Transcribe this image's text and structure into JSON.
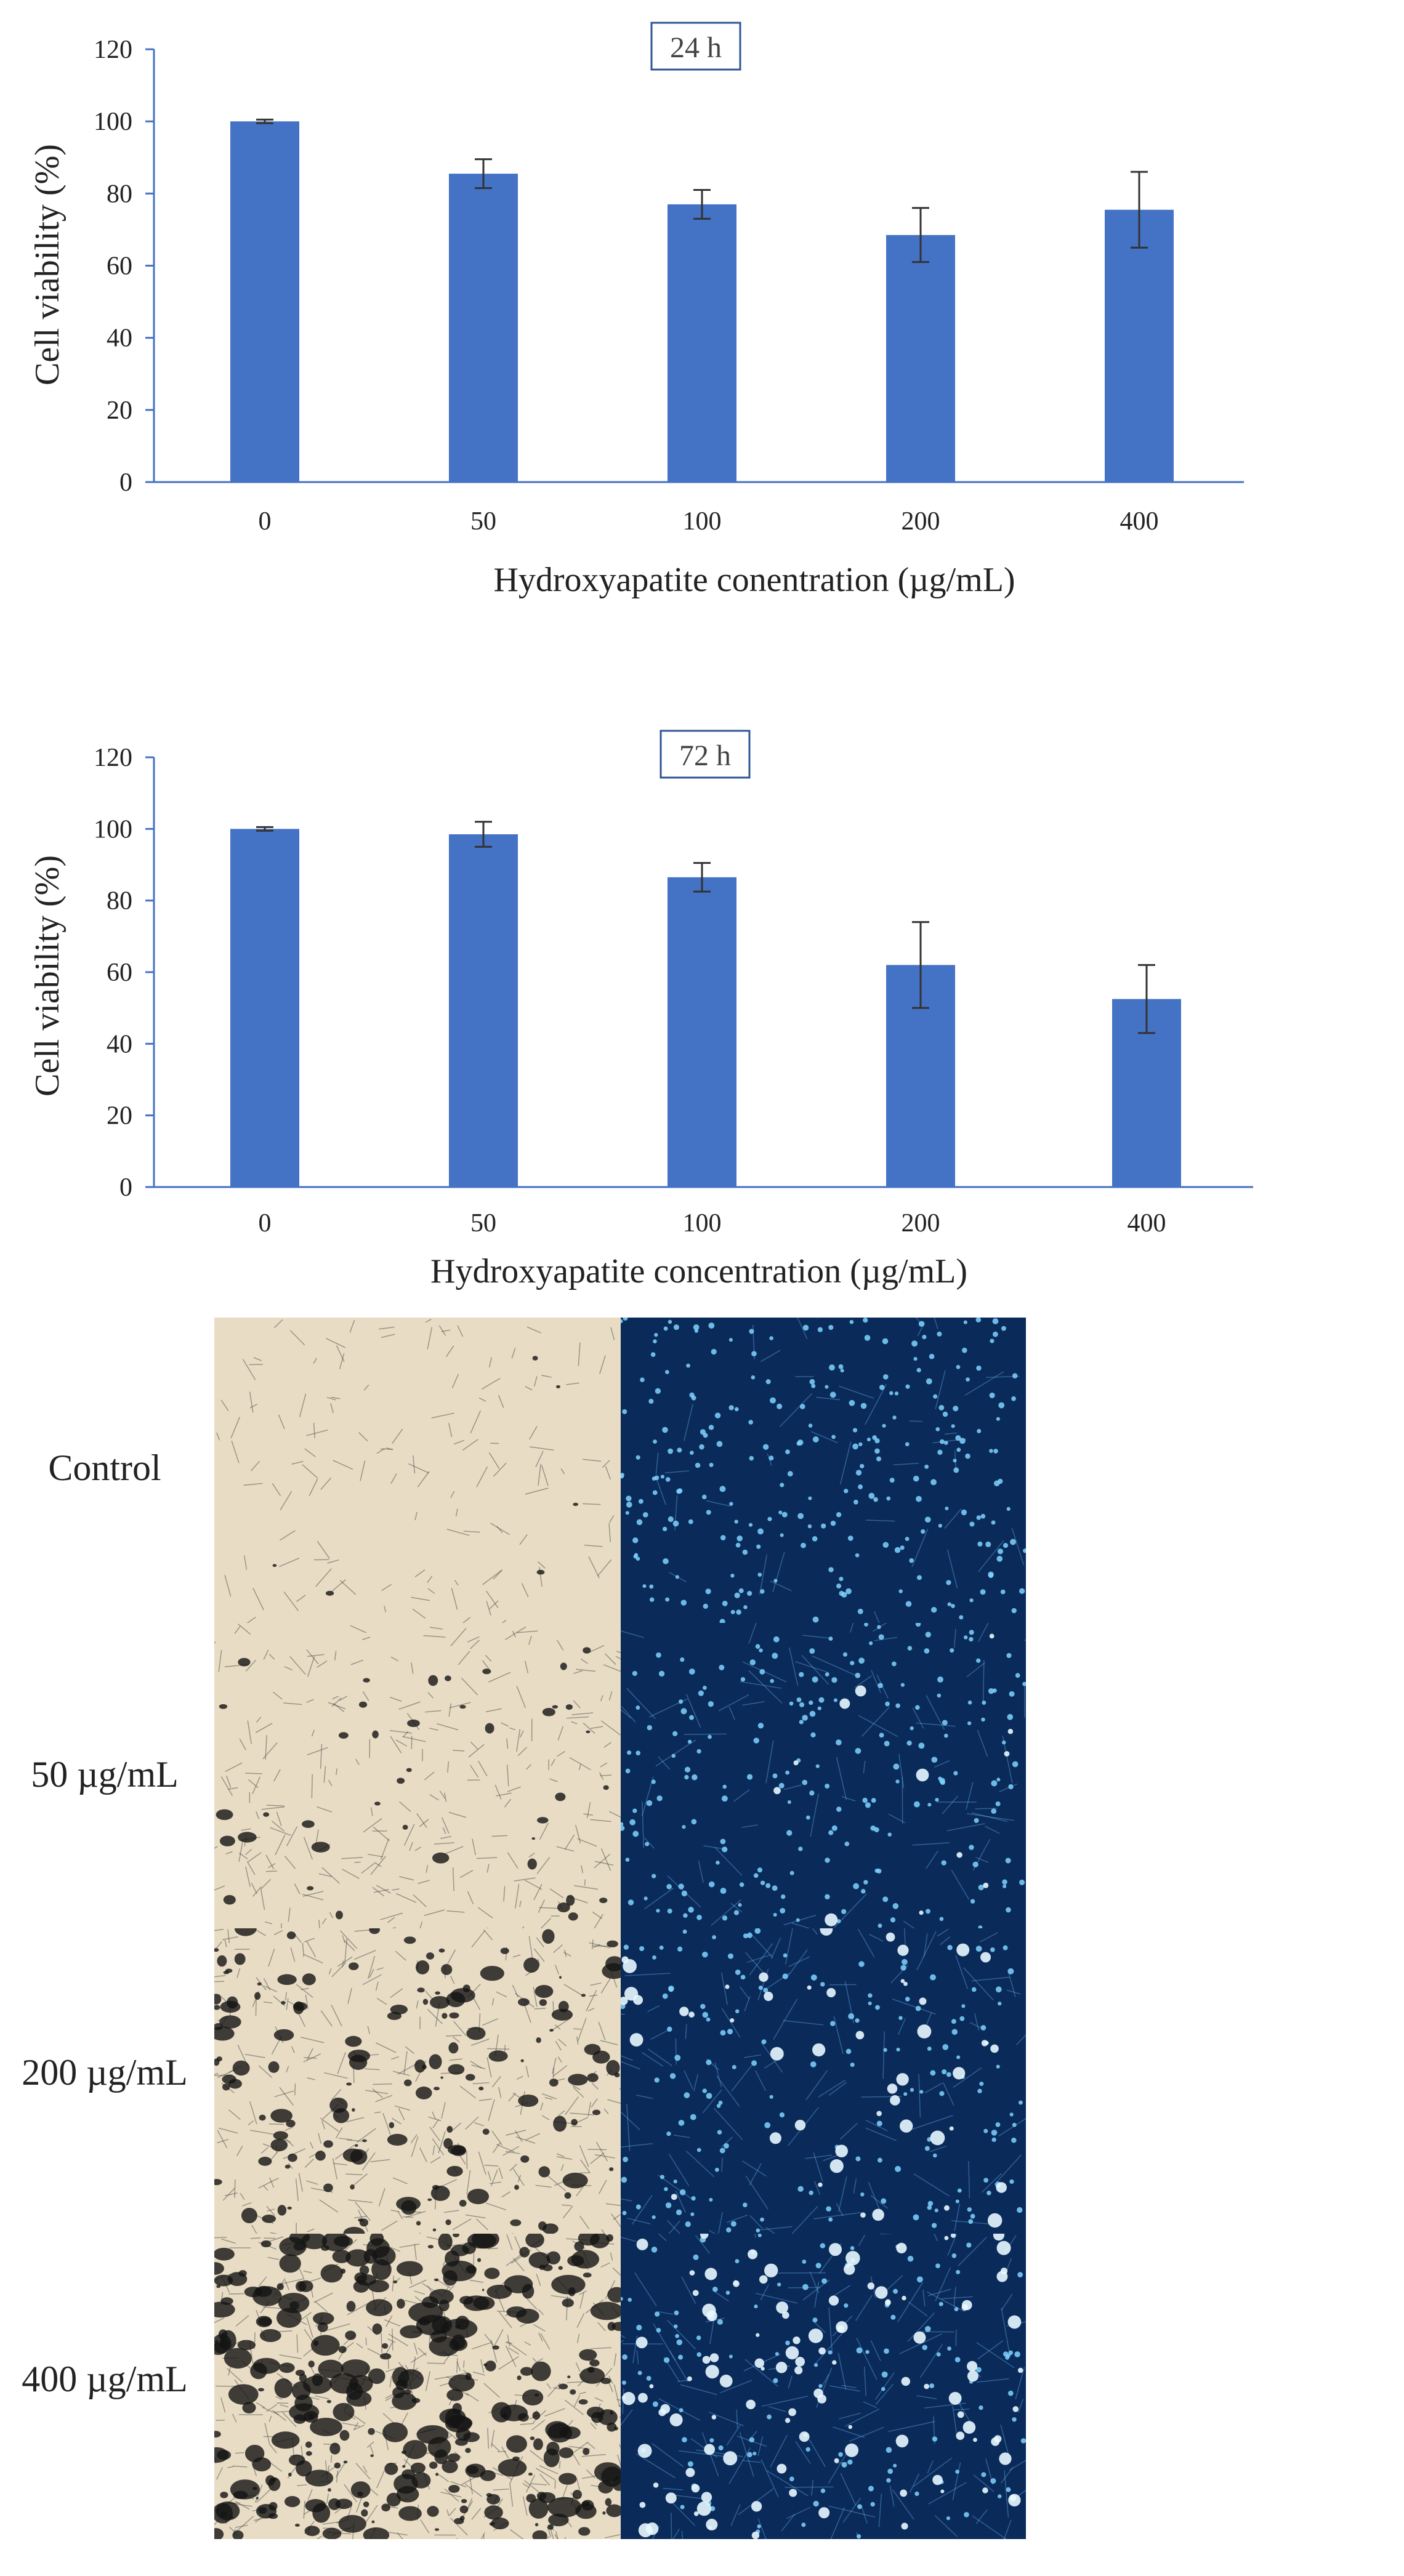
{
  "chart_data": [
    {
      "type": "bar",
      "title": "24 h",
      "xlabel": "Hydroxyapatite conentration (µg/mL)",
      "ylabel": "Cell viability (%)",
      "categories": [
        "0",
        "50",
        "100",
        "200",
        "400"
      ],
      "values": [
        100,
        85.5,
        77,
        68.5,
        75.5
      ],
      "errors": [
        0.5,
        4,
        4,
        7.5,
        10.5
      ],
      "yticks": [
        "0",
        "20",
        "40",
        "60",
        "80",
        "100",
        "120"
      ],
      "ylim": [
        0,
        120
      ],
      "grid": false,
      "bar_color": "#4472c4"
    },
    {
      "type": "bar",
      "title": "72 h",
      "xlabel": "Hydroxyapatite concentration (µg/mL)",
      "ylabel": "Cell viability (%)",
      "categories": [
        "0",
        "50",
        "100",
        "200",
        "400"
      ],
      "values": [
        100,
        98.5,
        86.5,
        62,
        52.5
      ],
      "errors": [
        0.5,
        3.5,
        4,
        12,
        9.5
      ],
      "yticks": [
        "0",
        "20",
        "40",
        "60",
        "80",
        "100",
        "120"
      ],
      "ylim": [
        0,
        120
      ],
      "grid": false,
      "bar_color": "#4472c4"
    }
  ],
  "micrographs": {
    "rows": [
      {
        "label": "Control"
      },
      {
        "label": "50 µg/mL"
      },
      {
        "label": "200 µg/mL"
      },
      {
        "label": "400 µg/mL"
      }
    ],
    "brightfield_color": "#e8dcc4",
    "fluorescence_color": "#0a2a5a",
    "nuclei_color": "#7fd4ff"
  }
}
